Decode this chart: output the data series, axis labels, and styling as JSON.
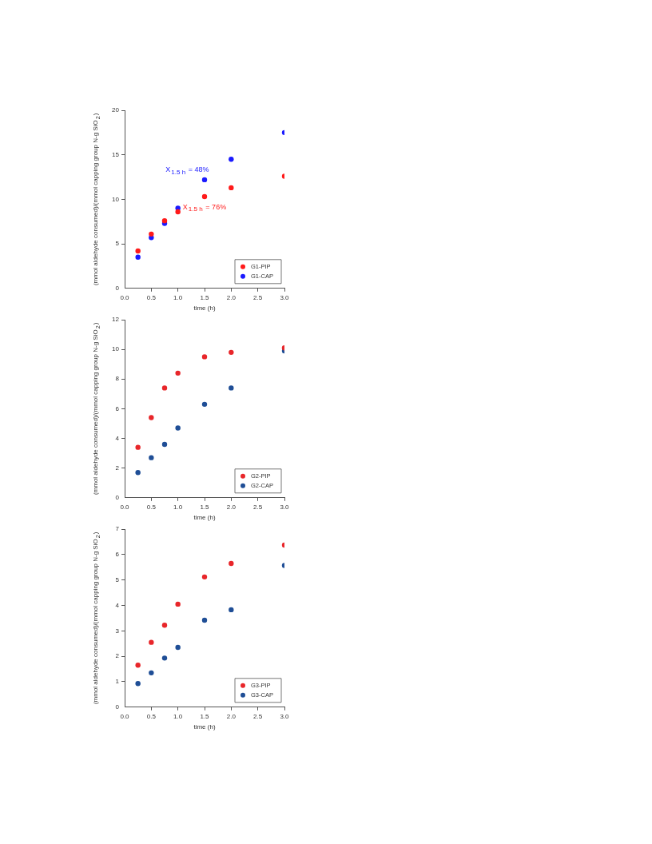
{
  "chart_data": [
    {
      "type": "scatter",
      "xlabel": "time (h)",
      "ylabel": "(mmol aldehyde consumed)/(mmol capping group N-g SiO$_{2}$)",
      "x": [
        0.25,
        0.5,
        0.75,
        1,
        1.5,
        2,
        3
      ],
      "xlim": [
        0,
        3
      ],
      "xticks": [
        {
          "value": 0,
          "label": "0.0"
        },
        0.5,
        {
          "value": 1,
          "label": "1.0"
        },
        1.5,
        {
          "value": 2,
          "label": "2.0"
        },
        2.5,
        {
          "value": 3,
          "label": "3.0"
        }
      ],
      "ylim": [
        0,
        20
      ],
      "yticks": [
        0,
        5,
        10,
        15,
        20
      ],
      "marker": "circle",
      "legend": "bottom right",
      "grid": false,
      "series": [
        {
          "name": "G1-PIP",
          "color": "#ff1a1a",
          "values": [
            4.2,
            6.1,
            7.6,
            8.6,
            10.3,
            11.3,
            12.6
          ]
        },
        {
          "name": "G1-CAP",
          "color": "#1a1aff",
          "values": [
            3.5,
            5.7,
            7.3,
            9.0,
            12.2,
            14.5,
            17.5
          ]
        }
      ],
      "annotations": [
        {
          "text": "X$_{1.5 h}$ = 48%",
          "x": 1.5,
          "y": 12.2
        },
        {
          "text": "X$_{1.5 h}$ = 76%",
          "x": 1.5,
          "y": 10.3
        }
      ]
    },
    {
      "type": "scatter",
      "xlabel": "time (h)",
      "ylabel": "(mmol aldehyde consumed)/(mmol capping group N-g SiO$_{2}$)",
      "x": [
        0.25,
        0.5,
        0.75,
        1,
        1.5,
        2,
        3
      ],
      "xlim": [
        0,
        3
      ],
      "xticks": [
        {
          "value": 0,
          "label": "0.0"
        },
        0.5,
        {
          "value": 1,
          "label": "1.0"
        },
        1.5,
        {
          "value": 2,
          "label": "2.0"
        },
        2.5,
        {
          "value": 3,
          "label": "3.0"
        }
      ],
      "ylim": [
        0,
        12
      ],
      "yticks": [
        0,
        2,
        4,
        6,
        8,
        10,
        12
      ],
      "marker": "circle",
      "legend": "bottom right",
      "grid": false,
      "series": [
        {
          "name": "G2-PIP",
          "color": "#e8262a",
          "values": [
            3.4,
            5.4,
            7.4,
            8.4,
            9.5,
            9.8,
            10.1
          ]
        },
        {
          "name": "G2-CAP",
          "color": "#1f4e96",
          "values": [
            1.7,
            2.7,
            3.6,
            4.7,
            6.3,
            7.4,
            9.9
          ]
        }
      ]
    },
    {
      "type": "scatter",
      "xlabel": "time (h)",
      "ylabel": "(mmol aldehyde consumed)/(mmol capping group N-g SiO$_{2}$)",
      "x": [
        0.25,
        0.5,
        0.75,
        1,
        1.5,
        2,
        3
      ],
      "xlim": [
        0,
        3
      ],
      "xticks": [
        {
          "value": 0,
          "label": "0.0"
        },
        0.5,
        {
          "value": 1,
          "label": "1.0"
        },
        1.5,
        {
          "value": 2,
          "label": "2.0"
        },
        2.5,
        {
          "value": 3,
          "label": "3.0"
        }
      ],
      "ylim": [
        0,
        7
      ],
      "yticks": [
        0,
        1,
        2,
        3,
        4,
        5,
        6,
        7
      ],
      "marker": "circle",
      "legend": "bottom right",
      "grid": false,
      "series": [
        {
          "name": "G3-PIP",
          "color": "#e8262a",
          "values": [
            1.65,
            2.55,
            3.22,
            4.05,
            5.12,
            5.65,
            6.37
          ]
        },
        {
          "name": "G3-CAP",
          "color": "#1f4e96",
          "values": [
            0.93,
            1.35,
            1.93,
            2.35,
            3.42,
            3.83,
            5.57
          ]
        }
      ]
    }
  ]
}
